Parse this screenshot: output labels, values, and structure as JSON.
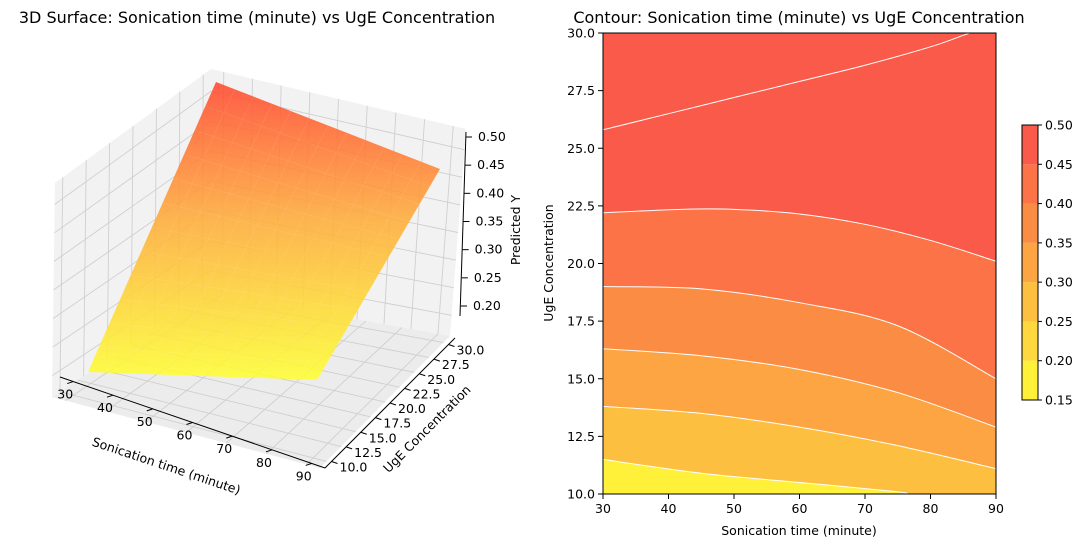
{
  "figure": {
    "surface_title": "3D Surface: Sonication time (minute) vs UgE Concentration",
    "contour_title": "Contour: Sonication time (minute) vs UgE Concentration"
  },
  "chart_data": [
    {
      "type": "surface3d",
      "title": "3D Surface: Sonication time (minute) vs UgE Concentration",
      "xlabel": "Sonication time (minute)",
      "ylabel": "UgE Concentration",
      "zlabel": "Predicted Y",
      "xlim": [
        30,
        90
      ],
      "ylim": [
        10,
        30
      ],
      "zlim": [
        0.18,
        0.5
      ],
      "x_ticks": [
        "30",
        "40",
        "50",
        "60",
        "70",
        "80",
        "90"
      ],
      "y_ticks": [
        "10.0",
        "12.5",
        "15.0",
        "17.5",
        "20.0",
        "22.5",
        "25.0",
        "27.5",
        "30.0"
      ],
      "z_ticks": [
        "0.20",
        "0.25",
        "0.30",
        "0.35",
        "0.40",
        "0.45",
        "0.50"
      ],
      "grid": true,
      "colormap": [
        "#ffff33",
        "#ff4c33"
      ],
      "corner_values": [
        {
          "x": 30,
          "y": 10,
          "z": 0.18
        },
        {
          "x": 90,
          "y": 10,
          "z": 0.24
        },
        {
          "x": 30,
          "y": 30,
          "z": 0.49
        },
        {
          "x": 90,
          "y": 30,
          "z": 0.43
        }
      ]
    },
    {
      "type": "contour",
      "title": "Contour: Sonication time (minute) vs UgE Concentration",
      "xlabel": "Sonication time (minute)",
      "ylabel": "UgE Concentration",
      "xlim": [
        30,
        90
      ],
      "ylim": [
        10,
        30
      ],
      "x_ticks": [
        "30",
        "40",
        "50",
        "60",
        "70",
        "80",
        "90"
      ],
      "y_ticks": [
        "10.0",
        "12.5",
        "15.0",
        "17.5",
        "20.0",
        "22.5",
        "25.0",
        "27.5",
        "30.0"
      ],
      "levels": [
        0.15,
        0.2,
        0.25,
        0.3,
        0.35,
        0.4,
        0.45,
        0.5
      ],
      "level_colors": [
        "#fff13a",
        "#fed83e",
        "#fdbf3f",
        "#fca542",
        "#fb8c44",
        "#fb7346",
        "#fa5a49"
      ],
      "colorbar_ticks": [
        "0.15",
        "0.20",
        "0.25",
        "0.30",
        "0.35",
        "0.40",
        "0.45",
        "0.50"
      ],
      "contour_lines": [
        {
          "level": 0.2,
          "points": [
            [
              30,
              11.5
            ],
            [
              45,
              10.9
            ],
            [
              60,
              10.5
            ],
            [
              75,
              10.1
            ],
            [
              76,
              10
            ]
          ]
        },
        {
          "level": 0.25,
          "points": [
            [
              30,
              13.8
            ],
            [
              45,
              13.5
            ],
            [
              60,
              12.9
            ],
            [
              75,
              12.1
            ],
            [
              90,
              11.1
            ]
          ]
        },
        {
          "level": 0.3,
          "points": [
            [
              30,
              16.3
            ],
            [
              45,
              16.0
            ],
            [
              60,
              15.4
            ],
            [
              75,
              14.4
            ],
            [
              90,
              12.9
            ]
          ]
        },
        {
          "level": 0.35,
          "points": [
            [
              30,
              19.0
            ],
            [
              45,
              18.9
            ],
            [
              60,
              18.3
            ],
            [
              75,
              17.3
            ],
            [
              90,
              15.0
            ]
          ]
        },
        {
          "level": 0.4,
          "points": [
            [
              30,
              22.2
            ],
            [
              42,
              22.35
            ],
            [
              50,
              22.35
            ],
            [
              60,
              22.15
            ],
            [
              70,
              21.7
            ],
            [
              80,
              21.0
            ],
            [
              90,
              20.1
            ]
          ]
        },
        {
          "level": 0.45,
          "points": [
            [
              30,
              25.8
            ],
            [
              40,
              26.5
            ],
            [
              50,
              27.2
            ],
            [
              60,
              27.9
            ],
            [
              70,
              28.6
            ],
            [
              80,
              29.4
            ],
            [
              85,
              29.9
            ],
            [
              86,
              30
            ]
          ]
        }
      ]
    }
  ]
}
